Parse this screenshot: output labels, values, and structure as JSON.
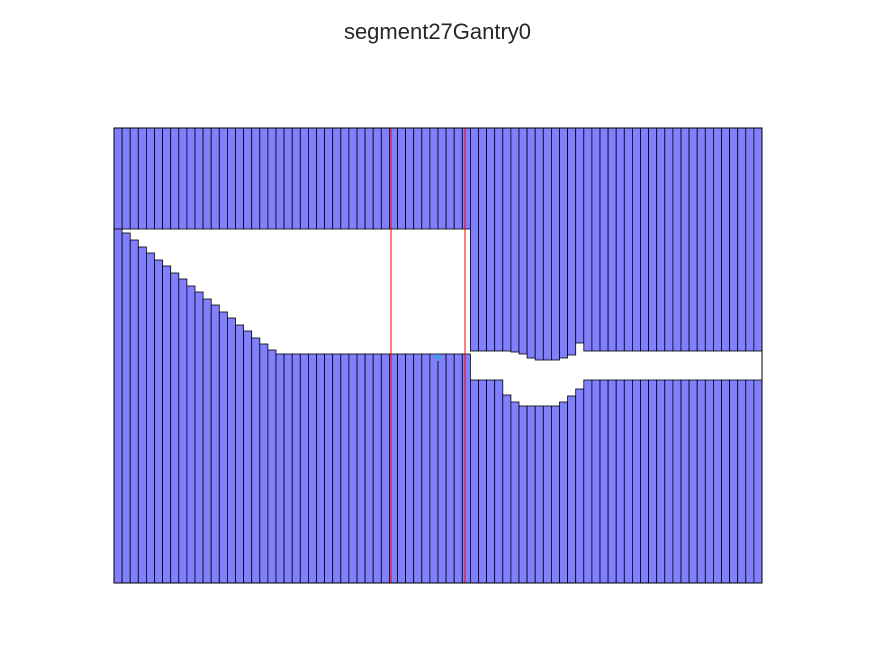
{
  "figure": {
    "title": "segment27Gantry0"
  },
  "colors": {
    "leaf_fill": "#8080ff",
    "leaf_edge": "#000000",
    "jaw_line": "#ff0000",
    "isocenter_marker": "#00c0c0",
    "background": "#ffffff"
  },
  "mlc": {
    "leaf_pairs": 80,
    "left_bank_top_edges": [
      229,
      233,
      240,
      247,
      253,
      260,
      266,
      273,
      279,
      286,
      292,
      299,
      305,
      312,
      318,
      325,
      331,
      338,
      344,
      350,
      354,
      354,
      354,
      354,
      354,
      354,
      354,
      354,
      354,
      354,
      354,
      354,
      354,
      354,
      354,
      354,
      354,
      354,
      354,
      354,
      354,
      354,
      354,
      354,
      380,
      380,
      380,
      380,
      395,
      402,
      406,
      406,
      406,
      406,
      406,
      402,
      396,
      389,
      380,
      380,
      380,
      380,
      380,
      380,
      380,
      380,
      380,
      380,
      380,
      380,
      380,
      380,
      380,
      380,
      380,
      380,
      380,
      380,
      380,
      380
    ],
    "right_bank_bottom_edges": [
      229,
      229,
      229,
      229,
      229,
      229,
      229,
      229,
      229,
      229,
      229,
      229,
      229,
      229,
      229,
      229,
      229,
      229,
      229,
      229,
      229,
      229,
      229,
      229,
      229,
      229,
      229,
      229,
      229,
      229,
      229,
      229,
      229,
      229,
      229,
      229,
      229,
      229,
      229,
      229,
      229,
      229,
      229,
      229,
      351,
      351,
      351,
      351,
      351,
      352,
      354,
      358,
      360,
      360,
      360,
      358,
      355,
      343,
      351,
      351,
      351,
      351,
      351,
      351,
      351,
      351,
      351,
      351,
      351,
      351,
      351,
      351,
      351,
      351,
      351,
      351,
      351,
      351,
      351,
      351
    ],
    "jaw_positions": [
      391,
      465
    ]
  }
}
